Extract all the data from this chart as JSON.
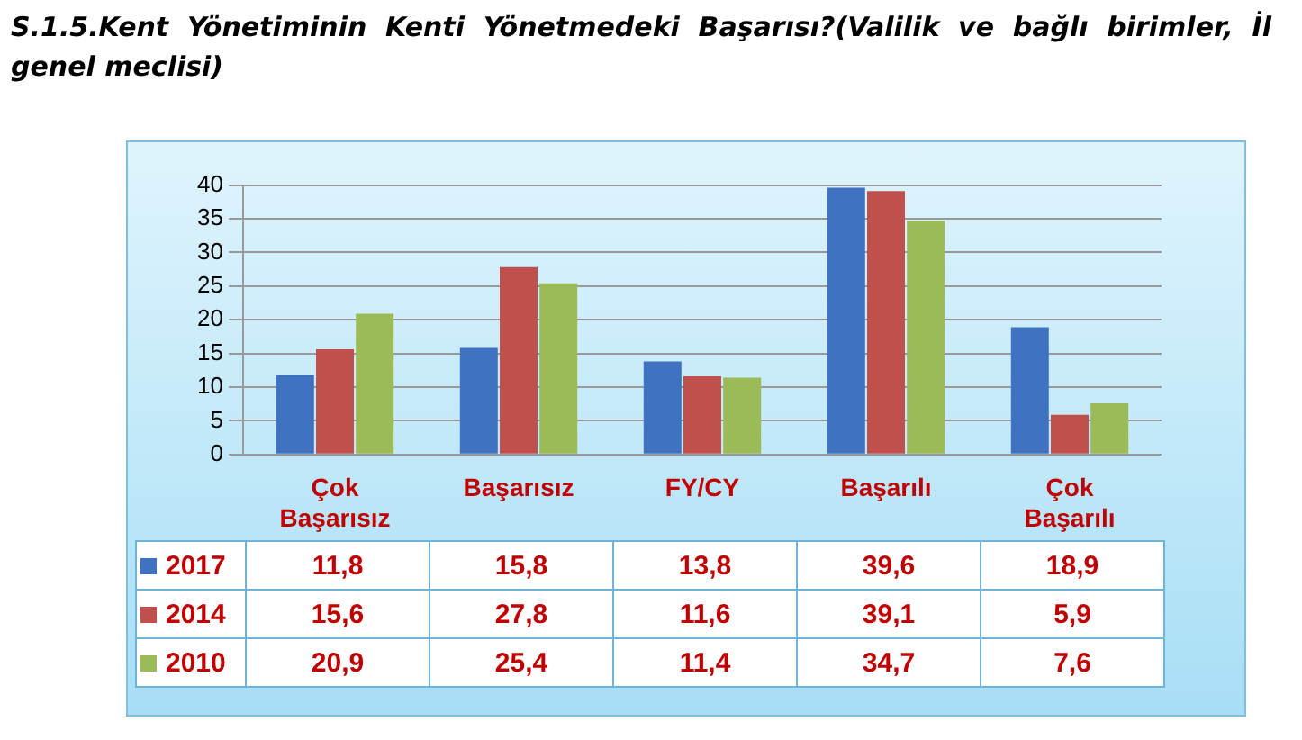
{
  "chart_data": {
    "type": "bar",
    "title": "S.1.5.Kent Yönetiminin Kenti Yönetmedeki Başarısı?(Valilik ve bağlı birimler, İl genel meclisi)",
    "categories": [
      "Çok Başarısız",
      "Başarısız",
      "FY/CY",
      "Başarılı",
      "Çok Başarılı"
    ],
    "series": [
      {
        "name": "2017",
        "color": "#3f72c0",
        "values": [
          11.8,
          15.8,
          13.8,
          39.6,
          18.9
        ],
        "value_labels": [
          "11,8",
          "15,8",
          "13,8",
          "39,6",
          "18,9"
        ]
      },
      {
        "name": "2014",
        "color": "#c0504d",
        "values": [
          15.6,
          27.8,
          11.6,
          39.1,
          5.9
        ],
        "value_labels": [
          "15,6",
          "27,8",
          "11,6",
          "39,1",
          "5,9"
        ]
      },
      {
        "name": "2010",
        "color": "#9bbb59",
        "values": [
          20.9,
          25.4,
          11.4,
          34.7,
          7.6
        ],
        "value_labels": [
          "20,9",
          "25,4",
          "11,4",
          "34,7",
          "7,6"
        ]
      }
    ],
    "ylim": [
      0,
      40
    ],
    "yticks": [
      0,
      5,
      10,
      15,
      20,
      25,
      30,
      35,
      40
    ],
    "grid": "y",
    "legend": "bottom left"
  }
}
